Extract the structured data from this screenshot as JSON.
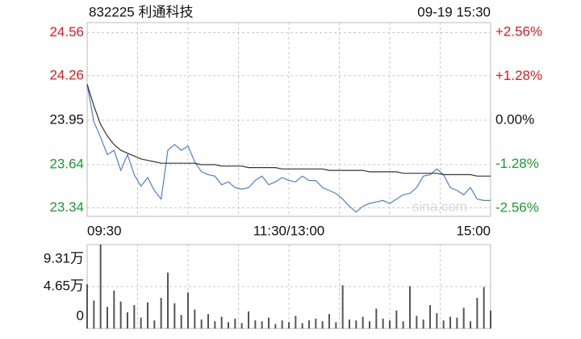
{
  "chart_data": [
    {
      "type": "line",
      "title": "832225 利通科技",
      "subtitle": "09-19 15:30",
      "watermark": "sina.com",
      "x": [
        0,
        4,
        8,
        12,
        16,
        20,
        24,
        28,
        32,
        36,
        40,
        44,
        48,
        52,
        56,
        60,
        64,
        68,
        72,
        76,
        80,
        84,
        88,
        92,
        96,
        100,
        104,
        108,
        112,
        116,
        120,
        124,
        128,
        132,
        136,
        140,
        144,
        148,
        152,
        156,
        160,
        164,
        168,
        172,
        176,
        180,
        184,
        188,
        192,
        196,
        200,
        204,
        208,
        212,
        216,
        220,
        224,
        228,
        232,
        236,
        240
      ],
      "xlim": [
        0,
        240
      ],
      "xticks": [
        {
          "value": 0,
          "label": "09:30"
        },
        {
          "value": 120,
          "label": "11:30/13:00"
        },
        {
          "value": 240,
          "label": "15:00"
        }
      ],
      "xgrid": [
        30,
        60,
        90,
        120,
        150,
        180,
        210
      ],
      "ylim": [
        23.28,
        24.63
      ],
      "yticks": [
        24.56,
        24.26,
        23.95,
        23.64,
        23.34
      ],
      "y2lim": [
        -2.8,
        2.84
      ],
      "y2ticks": [
        {
          "value": 2.56,
          "label": "+2.56%"
        },
        {
          "value": 1.28,
          "label": "+1.28%"
        },
        {
          "value": 0,
          "label": "0.00%"
        },
        {
          "value": -1.28,
          "label": "-1.28%"
        },
        {
          "value": -2.56,
          "label": "-2.56%"
        }
      ],
      "grid": true,
      "up_color": "#e4161b",
      "down_color": "#1a9a32",
      "series": [
        {
          "color": "#4a7fd8",
          "values": [
            24.2,
            23.94,
            23.83,
            23.71,
            23.74,
            23.6,
            23.71,
            23.57,
            23.49,
            23.55,
            23.46,
            23.4,
            23.74,
            23.78,
            23.74,
            23.77,
            23.66,
            23.59,
            23.57,
            23.56,
            23.5,
            23.52,
            23.48,
            23.47,
            23.48,
            23.53,
            23.56,
            23.5,
            23.52,
            23.55,
            23.53,
            23.52,
            23.56,
            23.53,
            23.53,
            23.48,
            23.46,
            23.44,
            23.4,
            23.35,
            23.31,
            23.35,
            23.37,
            23.38,
            23.39,
            23.37,
            23.4,
            23.43,
            23.44,
            23.48,
            23.56,
            23.57,
            23.61,
            23.57,
            23.48,
            23.46,
            23.43,
            23.48,
            23.4,
            23.39,
            23.39
          ]
        },
        {
          "color": "#333333",
          "values": [
            24.2,
            24.05,
            23.92,
            23.84,
            23.78,
            23.74,
            23.72,
            23.7,
            23.68,
            23.67,
            23.66,
            23.65,
            23.65,
            23.65,
            23.65,
            23.65,
            23.65,
            23.64,
            23.64,
            23.64,
            23.63,
            23.63,
            23.63,
            23.63,
            23.62,
            23.62,
            23.62,
            23.62,
            23.62,
            23.61,
            23.61,
            23.61,
            23.61,
            23.61,
            23.61,
            23.61,
            23.6,
            23.6,
            23.6,
            23.6,
            23.6,
            23.6,
            23.59,
            23.59,
            23.59,
            23.59,
            23.59,
            23.58,
            23.58,
            23.58,
            23.58,
            23.58,
            23.58,
            23.57,
            23.57,
            23.57,
            23.57,
            23.57,
            23.56,
            23.56,
            23.56
          ]
        }
      ]
    },
    {
      "type": "bar",
      "color": "#555555",
      "x": [
        0,
        4,
        8,
        12,
        16,
        20,
        24,
        28,
        32,
        36,
        40,
        44,
        48,
        52,
        56,
        60,
        64,
        68,
        72,
        76,
        80,
        84,
        88,
        92,
        96,
        100,
        104,
        108,
        112,
        116,
        120,
        124,
        128,
        132,
        136,
        140,
        144,
        148,
        152,
        156,
        160,
        164,
        168,
        172,
        176,
        180,
        184,
        188,
        192,
        196,
        200,
        204,
        208,
        212,
        216,
        220,
        224,
        228,
        232,
        236,
        240
      ],
      "xlim": [
        0,
        240
      ],
      "ylim": [
        0,
        9.31
      ],
      "yticks": [
        {
          "value": 9.31,
          "label": "9.31万"
        },
        {
          "value": 4.65,
          "label": "4.65万"
        },
        0
      ],
      "values": [
        4.9,
        3.1,
        9.31,
        2.4,
        4.2,
        3.0,
        1.8,
        2.6,
        1.2,
        2.9,
        0.9,
        3.4,
        6.2,
        2.8,
        1.5,
        4.0,
        2.1,
        1.0,
        1.6,
        0.8,
        1.3,
        0.7,
        1.1,
        0.6,
        1.9,
        0.9,
        0.8,
        1.2,
        0.5,
        0.9,
        0.7,
        1.4,
        0.6,
        0.9,
        1.1,
        0.8,
        1.6,
        0.7,
        4.8,
        1.0,
        0.9,
        1.3,
        0.8,
        2.2,
        1.1,
        0.9,
        2.0,
        0.8,
        4.7,
        1.4,
        1.0,
        2.6,
        1.7,
        0.9,
        1.3,
        1.2,
        2.3,
        0.8,
        3.4,
        4.6,
        2.0
      ]
    }
  ]
}
